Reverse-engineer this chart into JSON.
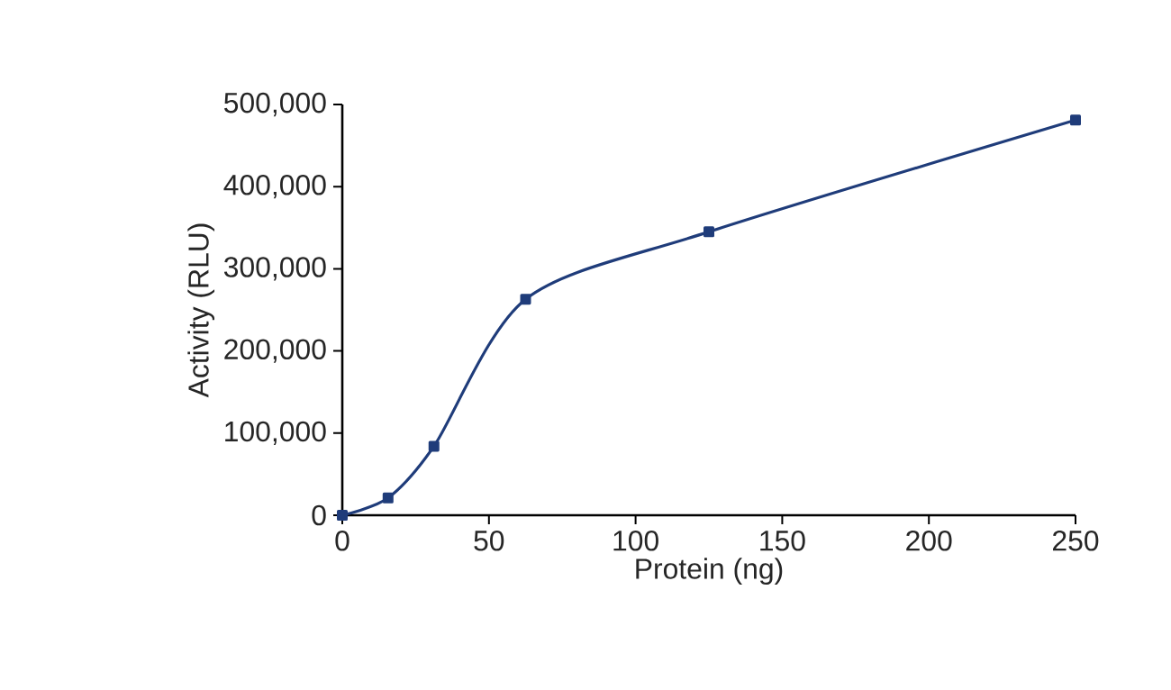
{
  "chart_data": {
    "type": "line",
    "xlabel": "Protein (ng)",
    "ylabel": "Activity (RLU)",
    "x": [
      0,
      15.6,
      31.25,
      62.5,
      125,
      250
    ],
    "series": [
      {
        "color": "#1f3c7a",
        "values": [
          0,
          21000,
          84000,
          263000,
          345000,
          481000
        ]
      }
    ],
    "xlim": [
      0,
      250
    ],
    "xticks": [
      0,
      50,
      100,
      150,
      200,
      250
    ],
    "ylim": [
      0,
      500000
    ],
    "yticks": [
      {
        "value": 0,
        "label": "0"
      },
      {
        "value": 100000,
        "label": "100,000"
      },
      {
        "value": 200000,
        "label": "200,000"
      },
      {
        "value": 300000,
        "label": "300,000"
      },
      {
        "value": 400000,
        "label": "400,000"
      },
      {
        "value": 500000,
        "label": "500,000"
      }
    ],
    "marker": "square",
    "line_style": "solid"
  }
}
